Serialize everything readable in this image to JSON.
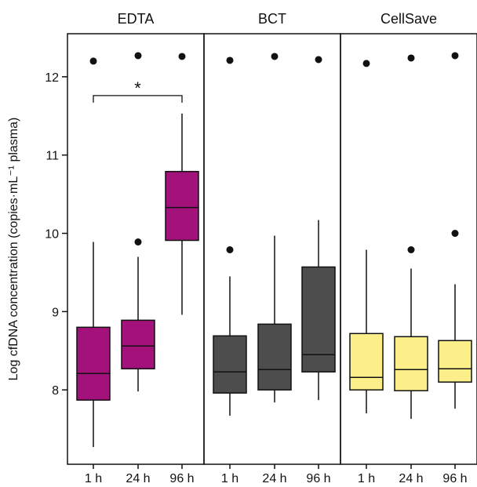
{
  "chart_data": {
    "type": "boxplot",
    "ylabel": "Log cfDNA concentration (copies·mL⁻¹ plasma)",
    "ylim": [
      7.05,
      12.55
    ],
    "yticks": [
      8,
      9,
      10,
      11,
      12
    ],
    "facets": [
      {
        "title": "EDTA",
        "color": "#a3127a",
        "categories": [
          "1 h",
          "24 h",
          "96 h"
        ],
        "boxes": [
          {
            "whisker_low": 7.27,
            "q1": 7.87,
            "median": 8.21,
            "q3": 8.8,
            "whisker_high": 9.89,
            "outliers": [
              12.2
            ]
          },
          {
            "whisker_low": 7.98,
            "q1": 8.27,
            "median": 8.56,
            "q3": 8.89,
            "whisker_high": 9.7,
            "outliers": [
              9.89,
              12.27
            ]
          },
          {
            "whisker_low": 8.96,
            "q1": 9.91,
            "median": 10.33,
            "q3": 10.79,
            "whisker_high": 11.53,
            "outliers": [
              12.26
            ]
          }
        ],
        "annotation": {
          "from": "1 h",
          "to": "96 h",
          "y": 11.76,
          "label": "*"
        }
      },
      {
        "title": "BCT",
        "color": "#4d4d4d",
        "categories": [
          "1 h",
          "24 h",
          "96 h"
        ],
        "boxes": [
          {
            "whisker_low": 7.67,
            "q1": 7.96,
            "median": 8.23,
            "q3": 8.69,
            "whisker_high": 9.45,
            "outliers": [
              9.79,
              12.21
            ]
          },
          {
            "whisker_low": 7.84,
            "q1": 8.0,
            "median": 8.26,
            "q3": 8.84,
            "whisker_high": 9.97,
            "outliers": [
              12.26
            ]
          },
          {
            "whisker_low": 7.87,
            "q1": 8.23,
            "median": 8.45,
            "q3": 9.57,
            "whisker_high": 10.17,
            "outliers": [
              12.22
            ]
          }
        ]
      },
      {
        "title": "CellSave",
        "color": "#fcef8a",
        "categories": [
          "1 h",
          "24 h",
          "96 h"
        ],
        "boxes": [
          {
            "whisker_low": 7.7,
            "q1": 8.0,
            "median": 8.16,
            "q3": 8.72,
            "whisker_high": 9.79,
            "outliers": [
              12.17
            ]
          },
          {
            "whisker_low": 7.63,
            "q1": 7.99,
            "median": 8.26,
            "q3": 8.68,
            "whisker_high": 9.55,
            "outliers": [
              9.79,
              12.24
            ]
          },
          {
            "whisker_low": 7.76,
            "q1": 8.1,
            "median": 8.27,
            "q3": 8.63,
            "whisker_high": 9.35,
            "outliers": [
              10.0,
              12.27
            ]
          }
        ]
      }
    ]
  }
}
